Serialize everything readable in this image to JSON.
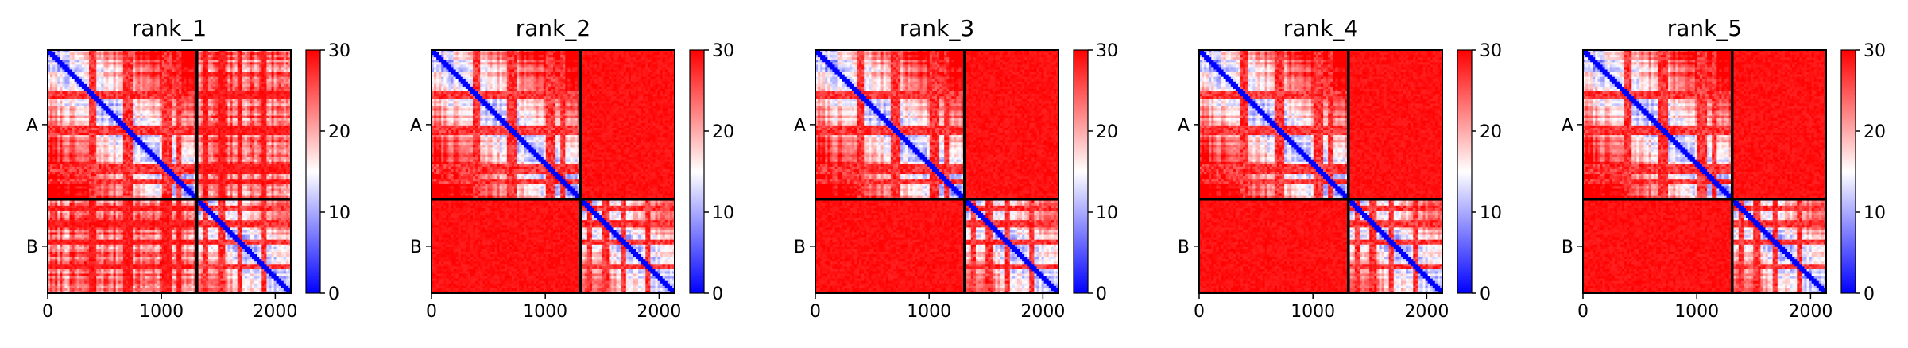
{
  "chart_data": [
    {
      "type": "heatmap",
      "title": "rank_1",
      "xlim": [
        0,
        2137
      ],
      "x_ticks": [
        "0",
        "1000",
        "2000"
      ],
      "x_tick_values": [
        0,
        1000,
        2000
      ],
      "y_ticks": [
        "A",
        "B"
      ],
      "chain_boundary": 1311,
      "colorbar": {
        "min": 0,
        "max": 30,
        "ticks": [
          "0",
          "10",
          "20",
          "30"
        ],
        "colors": [
          "#0000ff",
          "#ffffff",
          "#ff0000"
        ]
      },
      "inter_chain": "mixed"
    },
    {
      "type": "heatmap",
      "title": "rank_2",
      "xlim": [
        0,
        2137
      ],
      "x_ticks": [
        "0",
        "1000",
        "2000"
      ],
      "x_tick_values": [
        0,
        1000,
        2000
      ],
      "y_ticks": [
        "A",
        "B"
      ],
      "chain_boundary": 1311,
      "colorbar": {
        "min": 0,
        "max": 30,
        "ticks": [
          "0",
          "10",
          "20",
          "30"
        ],
        "colors": [
          "#0000ff",
          "#ffffff",
          "#ff0000"
        ]
      },
      "inter_chain": "high"
    },
    {
      "type": "heatmap",
      "title": "rank_3",
      "xlim": [
        0,
        2137
      ],
      "x_ticks": [
        "0",
        "1000",
        "2000"
      ],
      "x_tick_values": [
        0,
        1000,
        2000
      ],
      "y_ticks": [
        "A",
        "B"
      ],
      "chain_boundary": 1311,
      "colorbar": {
        "min": 0,
        "max": 30,
        "ticks": [
          "0",
          "10",
          "20",
          "30"
        ],
        "colors": [
          "#0000ff",
          "#ffffff",
          "#ff0000"
        ]
      },
      "inter_chain": "high"
    },
    {
      "type": "heatmap",
      "title": "rank_4",
      "xlim": [
        0,
        2137
      ],
      "x_ticks": [
        "0",
        "1000",
        "2000"
      ],
      "x_tick_values": [
        0,
        1000,
        2000
      ],
      "y_ticks": [
        "A",
        "B"
      ],
      "chain_boundary": 1311,
      "colorbar": {
        "min": 0,
        "max": 30,
        "ticks": [
          "0",
          "10",
          "20",
          "30"
        ],
        "colors": [
          "#0000ff",
          "#ffffff",
          "#ff0000"
        ]
      },
      "inter_chain": "high"
    },
    {
      "type": "heatmap",
      "title": "rank_5",
      "xlim": [
        0,
        2137
      ],
      "x_ticks": [
        "0",
        "1000",
        "2000"
      ],
      "x_tick_values": [
        0,
        1000,
        2000
      ],
      "y_ticks": [
        "A",
        "B"
      ],
      "chain_boundary": 1311,
      "colorbar": {
        "min": 0,
        "max": 30,
        "ticks": [
          "0",
          "10",
          "20",
          "30"
        ],
        "colors": [
          "#0000ff",
          "#ffffff",
          "#ff0000"
        ]
      },
      "inter_chain": "high"
    }
  ]
}
